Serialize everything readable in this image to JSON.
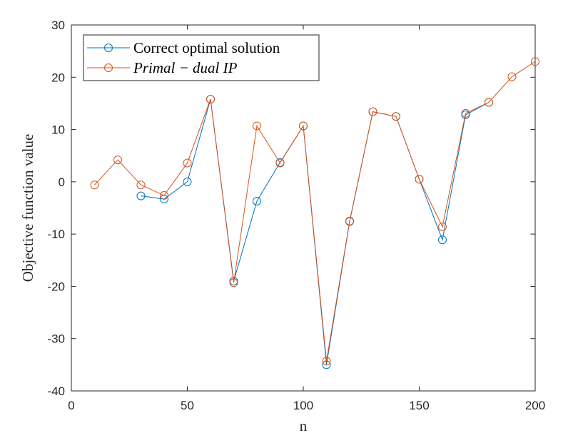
{
  "chart_data": {
    "type": "line",
    "title": "",
    "xlabel": "n",
    "ylabel": "Objective function value",
    "xlim": [
      0,
      200
    ],
    "ylim": [
      -40,
      30
    ],
    "x_ticks": [
      0,
      50,
      100,
      150,
      200
    ],
    "y_ticks": [
      -40,
      -30,
      -20,
      -10,
      0,
      10,
      20,
      30
    ],
    "grid": false,
    "legend_position": "top-left",
    "series": [
      {
        "name": "Correct optimal solution",
        "color": "#0072BD",
        "marker": "circle",
        "x": [
          30,
          40,
          50,
          60,
          70,
          80,
          90,
          100,
          110,
          120,
          130,
          140,
          150,
          160,
          170,
          180
        ],
        "y": [
          -2.7,
          -3.3,
          0.0,
          15.8,
          -19.0,
          -3.7,
          3.7,
          10.7,
          -35.0,
          -7.6,
          13.4,
          12.5,
          0.5,
          -11.1,
          12.8,
          15.2
        ]
      },
      {
        "name": "Primal − dual IP",
        "color": "#D95319",
        "marker": "circle",
        "x": [
          10,
          20,
          30,
          40,
          50,
          60,
          70,
          80,
          90,
          100,
          110,
          120,
          130,
          140,
          150,
          160,
          170,
          180,
          190,
          200
        ],
        "y": [
          -0.6,
          4.2,
          -0.6,
          -2.6,
          3.6,
          15.8,
          -19.3,
          10.7,
          3.6,
          10.7,
          -34.3,
          -7.5,
          13.4,
          12.5,
          0.5,
          -8.6,
          13.1,
          15.2,
          20.1,
          23.0
        ]
      }
    ]
  }
}
